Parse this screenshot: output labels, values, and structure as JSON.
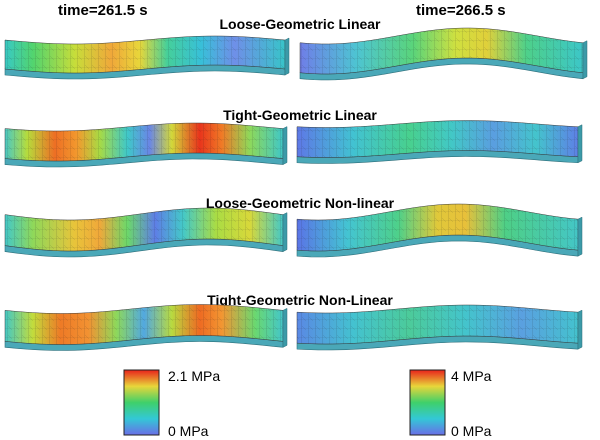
{
  "time_labels": {
    "left": "time=261.5 s",
    "right": "time=266.5 s"
  },
  "cases": [
    {
      "title": "Loose-Geometric Linear"
    },
    {
      "title": "Tight-Geometric Linear"
    },
    {
      "title": "Loose-Geometric Non-linear"
    },
    {
      "title": "Tight-Geometric Non-Linear"
    }
  ],
  "colorbars": [
    {
      "max_label": "2.1 MPa",
      "min_label": "0 MPa",
      "applies_to": "time=261.5 s"
    },
    {
      "max_label": "4 MPa",
      "min_label": "0 MPa",
      "applies_to": "time=266.5 s"
    }
  ],
  "colors": {
    "red": "#e8221b",
    "orange": "#f58a2a",
    "yellow": "#e8d63a",
    "green": "#3fd08a",
    "cyan": "#33c8d6",
    "blue": "#5a74e6",
    "slab_side": "#4aa8b8"
  }
}
